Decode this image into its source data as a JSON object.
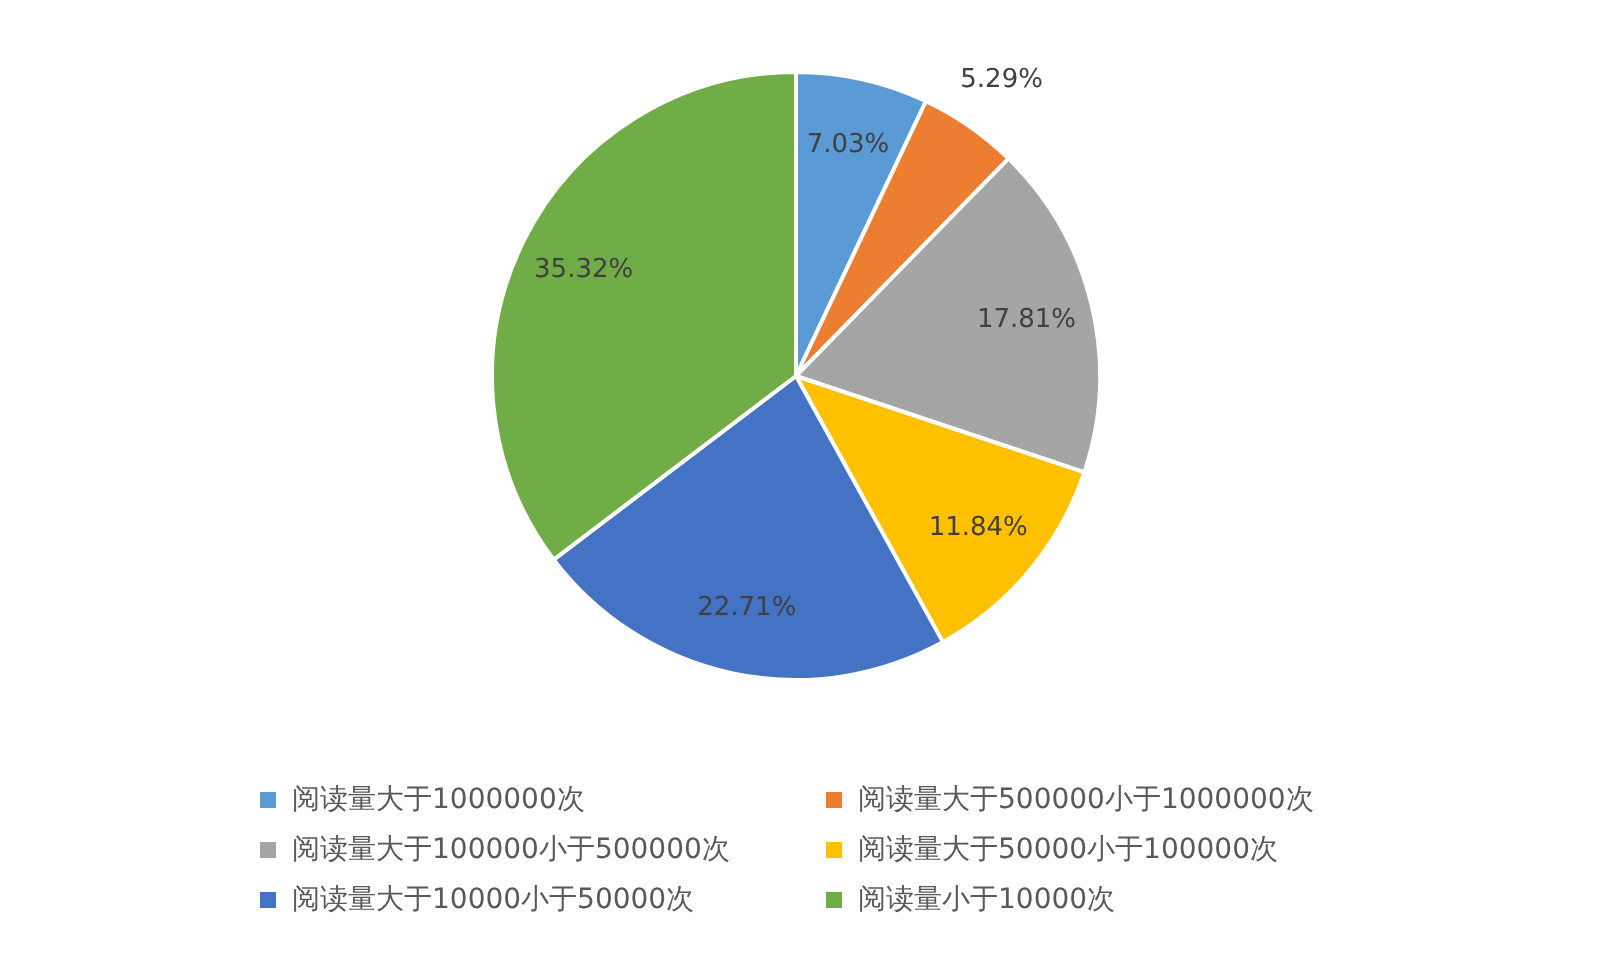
{
  "chart_data": {
    "type": "pie",
    "categories": [
      "阅读量大于1000000次",
      "阅读量大于500000小于1000000次",
      "阅读量大于100000小于500000次",
      "阅读量大于50000小于100000次",
      "阅读量大于10000小于50000次",
      "阅读量小于10000次"
    ],
    "values": [
      7.03,
      5.29,
      17.81,
      11.84,
      22.71,
      35.32
    ],
    "colors": [
      "#5b9bd5",
      "#ed7d31",
      "#a5a5a5",
      "#ffc000",
      "#4472c4",
      "#70ad47"
    ],
    "value_labels": [
      "7.03%",
      "5.29%",
      "17.81%",
      "11.84%",
      "22.71%",
      "35.32%"
    ],
    "legend": "bottom"
  }
}
